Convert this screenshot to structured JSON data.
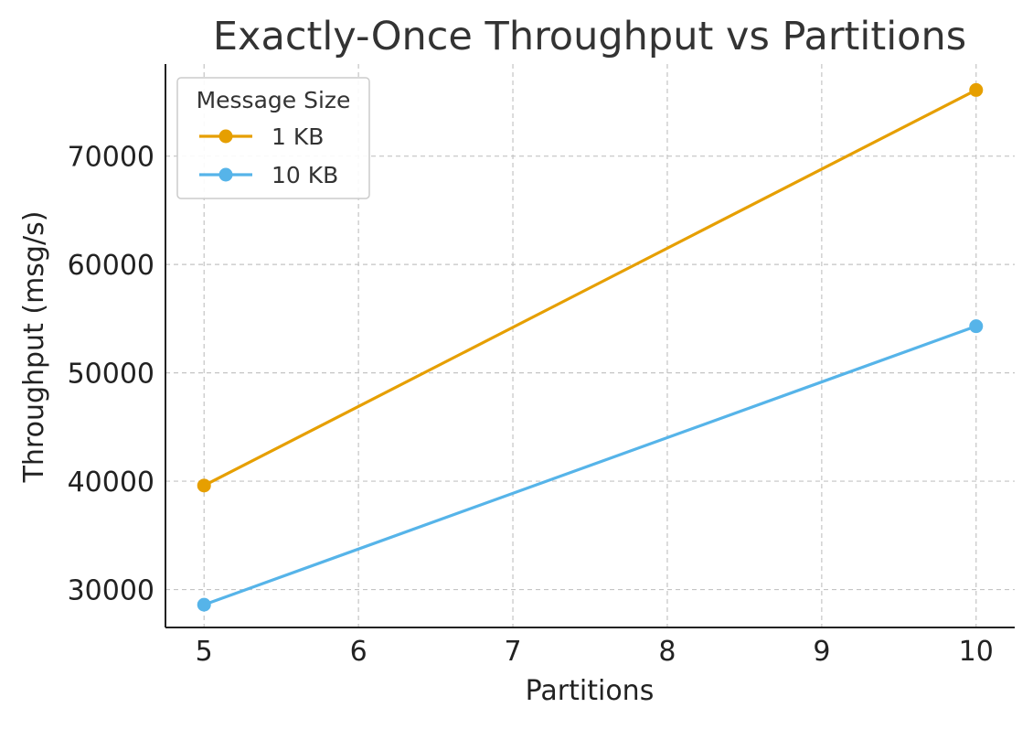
{
  "chart_data": {
    "type": "line",
    "title": "Exactly-Once Throughput vs Partitions",
    "xlabel": "Partitions",
    "ylabel": "Throughput (msg/s)",
    "x": [
      5,
      10
    ],
    "xlim": [
      4.75,
      10.25
    ],
    "ylim": [
      26500,
      78500
    ],
    "xticks": [
      5,
      6,
      7,
      8,
      9,
      10
    ],
    "yticks": [
      30000,
      40000,
      50000,
      60000,
      70000
    ],
    "grid": true,
    "legend": {
      "title": "Message Size",
      "placement": "top-left"
    },
    "series": [
      {
        "name": "1 KB",
        "values": [
          39600,
          76100
        ],
        "color": "#E69F00"
      },
      {
        "name": "10 KB",
        "values": [
          28600,
          54300
        ],
        "color": "#56B4E9"
      }
    ]
  }
}
